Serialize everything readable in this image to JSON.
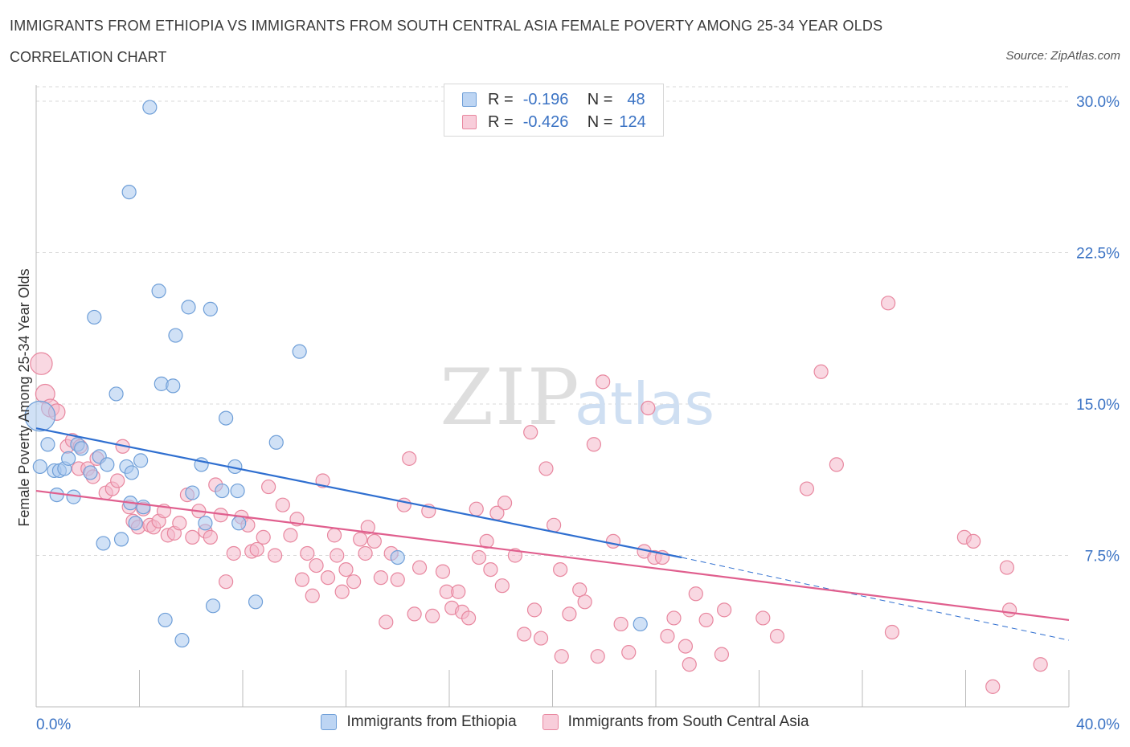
{
  "header": {
    "title": "IMMIGRANTS FROM ETHIOPIA VS IMMIGRANTS FROM SOUTH CENTRAL ASIA FEMALE POVERTY AMONG 25-34 YEAR OLDS",
    "subtitle": "CORRELATION CHART",
    "source": "Source: ZipAtlas.com"
  },
  "watermark": {
    "zip": "ZIP",
    "atlas": "atlas"
  },
  "legend": {
    "rows": [
      {
        "r_label": "R =",
        "r_value": "-0.196",
        "n_label": "N =",
        "n_value": "48",
        "color": "#a9c8ef"
      },
      {
        "r_label": "R =",
        "r_value": "-0.426",
        "n_label": "N =",
        "n_value": "124",
        "color": "#f4b8cb"
      }
    ]
  },
  "bottom_legend": {
    "items": [
      {
        "label": "Immigrants from Ethiopia",
        "color": "#a9c8ef"
      },
      {
        "label": "Immigrants from South Central Asia",
        "color": "#f4b8cb"
      }
    ]
  },
  "colors": {
    "blue_fill": "#a9c8ef",
    "blue_stroke": "#6f9fd8",
    "blue_line": "#2f6fd0",
    "pink_fill": "#f4b8cb",
    "pink_stroke": "#e8879f",
    "pink_line": "#e05f8e",
    "grid": "#d9d9d9",
    "tick_text": "#3b73c4"
  },
  "chart_data": {
    "type": "scatter",
    "title": "IMMIGRANTS FROM ETHIOPIA VS IMMIGRANTS FROM SOUTH CENTRAL ASIA FEMALE POVERTY AMONG 25-34 YEAR OLDS",
    "ylabel": "Female Poverty Among 25-34 Year Olds",
    "xlabel": "",
    "xlim": [
      0,
      40
    ],
    "ylim": [
      0,
      30
    ],
    "x_tick_labels": [
      "0.0%",
      "40.0%"
    ],
    "y_tick_labels": [
      "7.5%",
      "15.0%",
      "22.5%",
      "30.0%"
    ],
    "y_ticks": [
      7.5,
      15.0,
      22.5,
      30.0
    ],
    "grid": true,
    "legend_position": "top-center",
    "series": [
      {
        "name": "Immigrants from Ethiopia",
        "points": [
          [
            0.15,
            14.4,
            2.2
          ],
          [
            0.15,
            11.9,
            1
          ],
          [
            0.45,
            13.0,
            1
          ],
          [
            0.7,
            11.7,
            1
          ],
          [
            0.8,
            10.5,
            1
          ],
          [
            0.9,
            11.7,
            1
          ],
          [
            1.1,
            11.8,
            1
          ],
          [
            1.25,
            12.3,
            1
          ],
          [
            1.45,
            10.4,
            1
          ],
          [
            1.6,
            13.0,
            1
          ],
          [
            1.75,
            12.8,
            1
          ],
          [
            2.1,
            11.6,
            1
          ],
          [
            2.25,
            19.3,
            1
          ],
          [
            2.45,
            12.4,
            1
          ],
          [
            2.6,
            8.1,
            1
          ],
          [
            2.75,
            12.0,
            1
          ],
          [
            3.1,
            15.5,
            1
          ],
          [
            3.3,
            8.3,
            1
          ],
          [
            3.5,
            11.9,
            1
          ],
          [
            3.7,
            11.6,
            1
          ],
          [
            3.65,
            10.1,
            1
          ],
          [
            3.85,
            9.1,
            1
          ],
          [
            4.05,
            12.2,
            1
          ],
          [
            4.15,
            9.9,
            1
          ],
          [
            4.4,
            29.7,
            1
          ],
          [
            3.6,
            25.5,
            1
          ],
          [
            4.75,
            20.6,
            1
          ],
          [
            4.85,
            16.0,
            1
          ],
          [
            5.0,
            4.3,
            1
          ],
          [
            5.3,
            15.9,
            1
          ],
          [
            5.4,
            18.4,
            1
          ],
          [
            5.65,
            3.3,
            1
          ],
          [
            5.9,
            19.8,
            1
          ],
          [
            6.05,
            10.6,
            1
          ],
          [
            6.4,
            12.0,
            1
          ],
          [
            6.55,
            9.1,
            1
          ],
          [
            6.75,
            19.7,
            1
          ],
          [
            6.85,
            5.0,
            1
          ],
          [
            7.2,
            10.7,
            1
          ],
          [
            7.35,
            14.3,
            1
          ],
          [
            7.7,
            11.9,
            1
          ],
          [
            7.8,
            10.7,
            1
          ],
          [
            7.85,
            9.1,
            1
          ],
          [
            8.5,
            5.2,
            1
          ],
          [
            9.3,
            13.1,
            1
          ],
          [
            10.2,
            17.6,
            1
          ],
          [
            14.0,
            7.4,
            1
          ],
          [
            23.4,
            4.1,
            1
          ]
        ]
      },
      {
        "name": "Immigrants from South Central Asia",
        "points": [
          [
            0.2,
            17.0,
            1.6
          ],
          [
            0.35,
            15.5,
            1.4
          ],
          [
            0.55,
            14.8,
            1.3
          ],
          [
            0.8,
            14.6,
            1.2
          ],
          [
            1.2,
            12.9,
            1
          ],
          [
            1.4,
            13.2,
            1
          ],
          [
            1.7,
            12.9,
            1
          ],
          [
            1.65,
            11.8,
            1
          ],
          [
            2.0,
            11.8,
            1
          ],
          [
            2.2,
            11.4,
            1
          ],
          [
            2.35,
            12.3,
            1
          ],
          [
            2.7,
            10.6,
            1
          ],
          [
            2.95,
            10.8,
            1
          ],
          [
            3.15,
            11.2,
            1
          ],
          [
            3.35,
            12.9,
            1
          ],
          [
            3.6,
            9.9,
            1
          ],
          [
            3.75,
            9.2,
            1
          ],
          [
            3.95,
            8.9,
            1
          ],
          [
            4.15,
            9.8,
            1
          ],
          [
            4.4,
            9.0,
            1
          ],
          [
            4.55,
            8.9,
            1
          ],
          [
            4.75,
            9.2,
            1
          ],
          [
            4.95,
            9.7,
            1
          ],
          [
            5.1,
            8.5,
            1
          ],
          [
            5.35,
            8.6,
            1
          ],
          [
            5.55,
            9.1,
            1
          ],
          [
            5.85,
            10.5,
            1
          ],
          [
            6.05,
            8.4,
            1
          ],
          [
            6.3,
            9.7,
            1
          ],
          [
            6.55,
            8.7,
            1
          ],
          [
            6.75,
            8.4,
            1
          ],
          [
            6.95,
            11.0,
            1
          ],
          [
            7.15,
            9.5,
            1
          ],
          [
            7.35,
            6.2,
            1
          ],
          [
            7.65,
            7.6,
            1
          ],
          [
            7.95,
            9.4,
            1
          ],
          [
            8.2,
            9.0,
            1
          ],
          [
            8.35,
            7.7,
            1
          ],
          [
            8.55,
            7.8,
            1
          ],
          [
            8.8,
            8.4,
            1
          ],
          [
            9.0,
            10.9,
            1
          ],
          [
            9.25,
            7.5,
            1
          ],
          [
            9.55,
            10.0,
            1
          ],
          [
            9.85,
            8.5,
            1
          ],
          [
            10.1,
            9.3,
            1
          ],
          [
            10.3,
            6.3,
            1
          ],
          [
            10.5,
            7.6,
            1
          ],
          [
            10.7,
            5.5,
            1
          ],
          [
            10.85,
            7.0,
            1
          ],
          [
            11.1,
            11.2,
            1
          ],
          [
            11.3,
            6.4,
            1
          ],
          [
            11.55,
            8.5,
            1
          ],
          [
            11.65,
            7.5,
            1
          ],
          [
            11.85,
            5.7,
            1
          ],
          [
            12.0,
            6.8,
            1
          ],
          [
            12.3,
            6.2,
            1
          ],
          [
            12.55,
            8.3,
            1
          ],
          [
            12.75,
            7.6,
            1
          ],
          [
            12.85,
            8.9,
            1
          ],
          [
            13.1,
            8.2,
            1
          ],
          [
            13.35,
            6.4,
            1
          ],
          [
            13.55,
            4.2,
            1
          ],
          [
            13.75,
            7.6,
            1
          ],
          [
            14.0,
            6.3,
            1
          ],
          [
            14.25,
            10.0,
            1
          ],
          [
            14.45,
            12.3,
            1
          ],
          [
            14.65,
            4.6,
            1
          ],
          [
            14.85,
            6.9,
            1
          ],
          [
            15.2,
            9.7,
            1
          ],
          [
            15.35,
            4.5,
            1
          ],
          [
            15.75,
            6.7,
            1
          ],
          [
            15.9,
            5.7,
            1
          ],
          [
            16.1,
            4.9,
            1
          ],
          [
            16.35,
            5.7,
            1
          ],
          [
            16.5,
            4.7,
            1
          ],
          [
            16.75,
            4.4,
            1
          ],
          [
            17.05,
            9.8,
            1
          ],
          [
            17.15,
            7.4,
            1
          ],
          [
            17.45,
            8.2,
            1
          ],
          [
            17.6,
            6.8,
            1
          ],
          [
            17.85,
            9.6,
            1
          ],
          [
            18.05,
            6.0,
            1
          ],
          [
            18.15,
            10.1,
            1
          ],
          [
            18.55,
            7.5,
            1
          ],
          [
            18.9,
            3.6,
            1
          ],
          [
            19.15,
            13.6,
            1
          ],
          [
            19.3,
            4.8,
            1
          ],
          [
            19.55,
            3.4,
            1
          ],
          [
            19.75,
            11.8,
            1
          ],
          [
            20.05,
            9.0,
            1
          ],
          [
            20.3,
            6.8,
            1
          ],
          [
            20.35,
            2.5,
            1
          ],
          [
            20.65,
            4.6,
            1
          ],
          [
            21.05,
            5.8,
            1
          ],
          [
            21.25,
            5.2,
            1
          ],
          [
            21.6,
            13.0,
            1
          ],
          [
            21.75,
            2.5,
            1
          ],
          [
            21.95,
            16.1,
            1
          ],
          [
            22.35,
            8.2,
            1
          ],
          [
            22.65,
            4.1,
            1
          ],
          [
            22.95,
            2.7,
            1
          ],
          [
            23.55,
            7.7,
            1
          ],
          [
            23.7,
            14.8,
            1
          ],
          [
            23.95,
            7.4,
            1
          ],
          [
            24.25,
            7.4,
            1
          ],
          [
            24.45,
            3.5,
            1
          ],
          [
            24.7,
            4.4,
            1
          ],
          [
            25.15,
            3.0,
            1
          ],
          [
            25.3,
            2.1,
            1
          ],
          [
            25.55,
            5.6,
            1
          ],
          [
            25.95,
            4.3,
            1
          ],
          [
            26.55,
            2.6,
            1
          ],
          [
            26.65,
            4.8,
            1
          ],
          [
            28.15,
            4.4,
            1
          ],
          [
            28.7,
            3.5,
            1
          ],
          [
            29.85,
            10.8,
            1
          ],
          [
            30.4,
            16.6,
            1
          ],
          [
            31.0,
            12.0,
            1
          ],
          [
            33.0,
            20.0,
            1
          ],
          [
            33.15,
            3.7,
            1
          ],
          [
            35.95,
            8.4,
            1
          ],
          [
            36.3,
            8.2,
            1
          ],
          [
            37.6,
            6.9,
            1
          ],
          [
            37.05,
            1.0,
            1
          ],
          [
            37.7,
            4.8,
            1
          ],
          [
            38.9,
            2.1,
            1
          ]
        ]
      }
    ],
    "trend_lines": [
      {
        "name": "Immigrants from Ethiopia",
        "x0": 0,
        "y0": 13.8,
        "x1": 25,
        "y1": 7.4,
        "dash_to_x": 40,
        "dash_to_y": 3.3
      },
      {
        "name": "Immigrants from South Central Asia",
        "x0": 0,
        "y0": 10.7,
        "x1": 40,
        "y1": 4.3
      }
    ]
  }
}
